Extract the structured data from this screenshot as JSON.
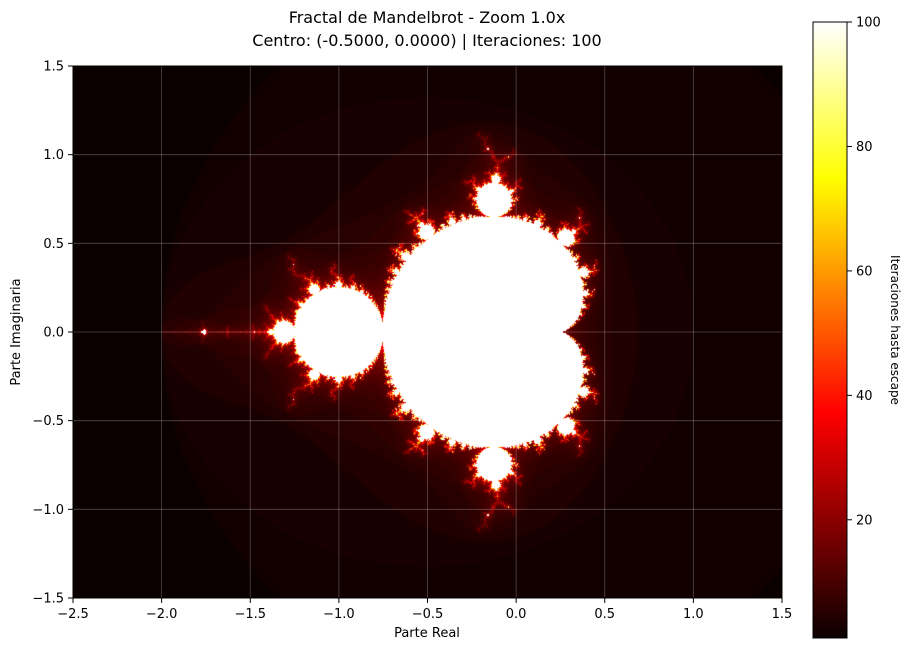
{
  "chart_data": {
    "type": "heatmap",
    "title_line1": "Fractal de Mandelbrot - Zoom 1.0x",
    "title_line2": "Centro: (-0.5000, 0.0000) | Iteraciones: 100",
    "xlabel": "Parte Real",
    "ylabel": "Parte Imaginaria",
    "xlim": [
      -2.5,
      1.5
    ],
    "ylim": [
      -1.5,
      1.5
    ],
    "x_ticks": [
      "−2.5",
      "−2.0",
      "−1.5",
      "−1.0",
      "−0.5",
      "0.0",
      "0.5",
      "1.0",
      "1.5"
    ],
    "x_tick_values": [
      -2.5,
      -2.0,
      -1.5,
      -1.0,
      -0.5,
      0.0,
      0.5,
      1.0,
      1.5
    ],
    "y_ticks": [
      "1.5",
      "1.0",
      "0.5",
      "0.0",
      "−0.5",
      "−1.0",
      "−1.5"
    ],
    "y_tick_values": [
      1.5,
      1.0,
      0.5,
      0.0,
      -0.5,
      -1.0,
      -1.5
    ],
    "grid": true,
    "center": [
      -0.5,
      0.0
    ],
    "zoom": 1.0,
    "max_iterations": 100,
    "colormap": "hot",
    "colorbar": {
      "label": "Iteraciones hasta escape",
      "range": [
        1,
        100
      ],
      "ticks": [
        "100",
        "80",
        "60",
        "40",
        "20"
      ],
      "tick_values": [
        100,
        80,
        60,
        40,
        20
      ]
    }
  }
}
